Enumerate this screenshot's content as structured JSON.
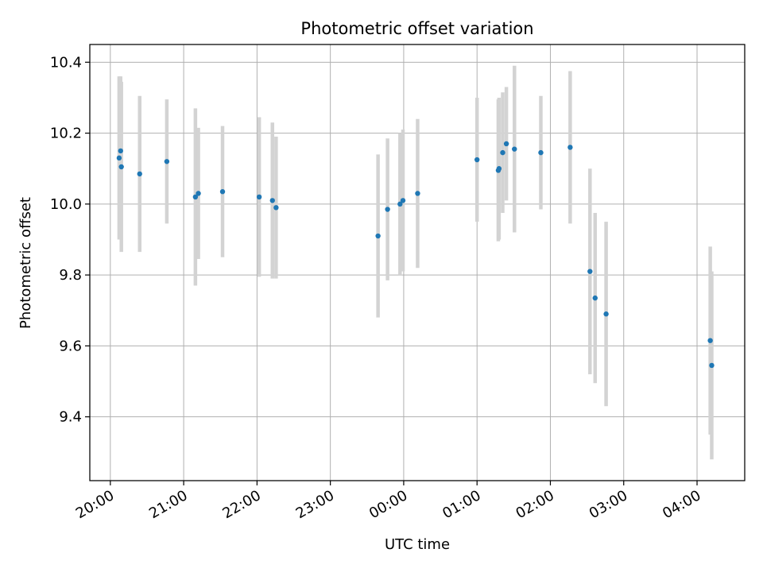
{
  "chart_data": {
    "type": "scatter",
    "title": "Photometric offset variation",
    "xlabel": "UTC time",
    "ylabel": "Photometric offset",
    "x_tick_labels": [
      "20:00",
      "21:00",
      "22:00",
      "23:00",
      "00:00",
      "01:00",
      "02:00",
      "03:00",
      "04:00"
    ],
    "y_ticks": [
      9.4,
      9.6,
      9.8,
      10.0,
      10.2,
      10.4
    ],
    "y_tick_labels": [
      "9.4",
      "9.6",
      "9.8",
      "10.0",
      "10.2",
      "10.4"
    ],
    "ylim": [
      9.22,
      10.45
    ],
    "xlim_hours": [
      19.72,
      28.65
    ],
    "grid": true,
    "colors": {
      "point": "#1f77b4",
      "errorbar": "#d3d3d3",
      "grid": "#b0b0b0"
    },
    "points": [
      {
        "t": 20.12,
        "y": 10.13,
        "err": 0.23
      },
      {
        "t": 20.14,
        "y": 10.15,
        "err": 0.21
      },
      {
        "t": 20.15,
        "y": 10.105,
        "err": 0.24
      },
      {
        "t": 20.4,
        "y": 10.085,
        "err": 0.22
      },
      {
        "t": 20.77,
        "y": 10.12,
        "err": 0.175
      },
      {
        "t": 21.16,
        "y": 10.02,
        "err": 0.25
      },
      {
        "t": 21.2,
        "y": 10.03,
        "err": 0.185
      },
      {
        "t": 21.53,
        "y": 10.035,
        "err": 0.185
      },
      {
        "t": 22.03,
        "y": 10.02,
        "err": 0.225
      },
      {
        "t": 22.21,
        "y": 10.01,
        "err": 0.22
      },
      {
        "t": 22.26,
        "y": 9.99,
        "err": 0.2
      },
      {
        "t": 23.65,
        "y": 9.91,
        "err": 0.23
      },
      {
        "t": 23.78,
        "y": 9.985,
        "err": 0.2
      },
      {
        "t": 23.95,
        "y": 10.0,
        "err": 0.2
      },
      {
        "t": 23.99,
        "y": 10.01,
        "err": 0.2
      },
      {
        "t": 24.19,
        "y": 10.03,
        "err": 0.21
      },
      {
        "t": 25.0,
        "y": 10.125,
        "err": 0.175
      },
      {
        "t": 25.29,
        "y": 10.095,
        "err": 0.2
      },
      {
        "t": 25.3,
        "y": 10.1,
        "err": 0.2
      },
      {
        "t": 25.35,
        "y": 10.145,
        "err": 0.17
      },
      {
        "t": 25.4,
        "y": 10.17,
        "err": 0.16
      },
      {
        "t": 25.51,
        "y": 10.155,
        "err": 0.235
      },
      {
        "t": 25.87,
        "y": 10.145,
        "err": 0.16
      },
      {
        "t": 26.27,
        "y": 10.16,
        "err": 0.215
      },
      {
        "t": 26.54,
        "y": 9.81,
        "err": 0.29
      },
      {
        "t": 26.61,
        "y": 9.735,
        "err": 0.24
      },
      {
        "t": 26.76,
        "y": 9.69,
        "err": 0.26
      },
      {
        "t": 28.18,
        "y": 9.615,
        "err": 0.265
      },
      {
        "t": 28.2,
        "y": 9.545,
        "err": 0.265
      }
    ]
  }
}
